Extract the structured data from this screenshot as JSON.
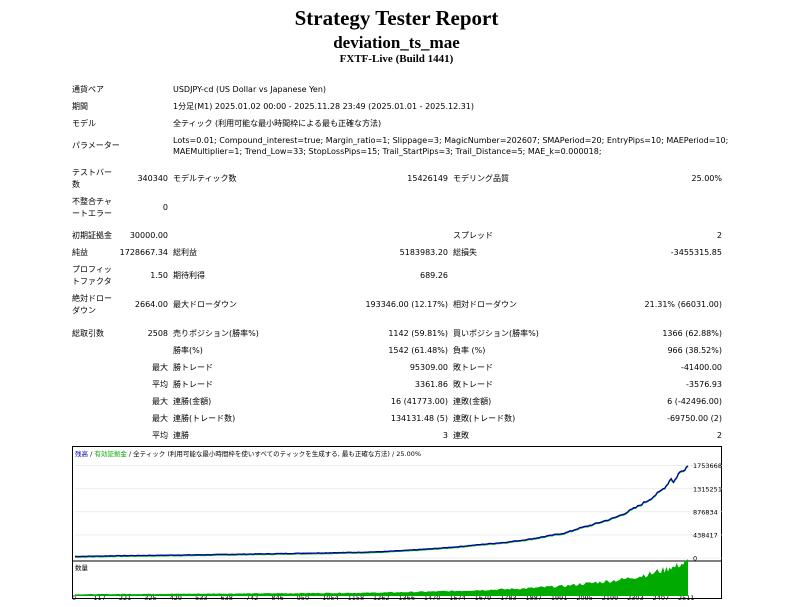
{
  "report": {
    "title": "Strategy Tester Report",
    "subtitle": "deviation_ts_mae",
    "server": "FXTF-Live (Build 1441)"
  },
  "settings": {
    "symbol_label": "通貨ペア",
    "symbol": "USDJPY-cd (US Dollar vs Japanese Yen)",
    "period_label": "期間",
    "period": "1分足(M1) 2025.01.02 00:00 - 2025.11.28 23:49 (2025.01.01 - 2025.12.31)",
    "model_label": "モデル",
    "model": "全ティック (利用可能な最小時間枠による最も正確な方法)",
    "params_label": "パラメーター",
    "params_line1": "Lots=0.01; Compound_interest=true; Margin_ratio=1; Slippage=3; MagicNumber=202607; SMAPeriod=20; EntryPips=10; MAEPeriod=10;",
    "params_line2": "MAEMultiplier=1; Trend_Low=33; StopLossPips=15; Trail_StartPips=3; Trail_Distance=5; MAE_k=0.000018;"
  },
  "stats": {
    "bars_label": [
      "テストバー",
      "数"
    ],
    "bars": "340340",
    "ticks_label": "モデルティック数",
    "ticks": "15426149",
    "quality_label": "モデリング品質",
    "quality": "25.00%",
    "mismatch_label": [
      "不整合チャ",
      "ートエラー"
    ],
    "mismatch": "0",
    "deposit_label": "初期証拠金",
    "deposit": "30000.00",
    "spread_label": "スプレッド",
    "spread": "2",
    "net_label": "純益",
    "net": "1728667.34",
    "gross_profit_label": "総利益",
    "gross_profit": "5183983.20",
    "gross_loss_label": "総損失",
    "gross_loss": "-3455315.85",
    "pf_label": [
      "プロフィッ",
      "トファクタ"
    ],
    "pf": "1.50",
    "expected_label": "期待利得",
    "expected": "689.26",
    "abs_dd_label": [
      "絶対ドロー",
      "ダウン"
    ],
    "abs_dd": "2664.00",
    "max_dd_label": "最大ドローダウン",
    "max_dd": "193346.00 (12.17%)",
    "rel_dd_label": "相対ドローダウン",
    "rel_dd": "21.31% (66031.00)",
    "total_trades_label": "総取引数",
    "total_trades": "2508",
    "short_label": "売りポジション(勝率%)",
    "short": "1142 (59.81%)",
    "long_label": "買いポジション(勝率%)",
    "long": "1366 (62.88%)",
    "win_rate_label": "勝率(%)",
    "win_rate": "1542 (61.48%)",
    "loss_rate_label": "負率 (%)",
    "loss_rate": "966 (38.52%)",
    "max_label": "最大",
    "avg_label": "平均",
    "largest_win_label": "勝トレード",
    "largest_win": "95309.00",
    "largest_loss_label": "敗トレード",
    "largest_loss": "-41400.00",
    "avg_win_label": "勝トレード",
    "avg_win": "3361.86",
    "avg_loss_label": "敗トレード",
    "avg_loss": "-3576.93",
    "max_consec_wins_label": "連勝(金額)",
    "max_consec_wins": "16 (41773.00)",
    "max_consec_losses_label": "連敗(金額)",
    "max_consec_losses": "6 (-42496.00)",
    "max_consec_profit_label": "連勝(トレード数)",
    "max_consec_profit": "134131.48 (5)",
    "max_consec_loss_label": "連敗(トレード数)",
    "max_consec_loss": "-69750.00 (2)",
    "avg_consec_wins_label": "連勝",
    "avg_consec_wins": "3",
    "avg_consec_losses_label": "連敗",
    "avg_consec_losses": "2"
  },
  "chart_data": {
    "type": "line",
    "legend": {
      "balance": "残高",
      "sep": " / ",
      "equity": "有効証拠金",
      "model": " / 全ティック (利用可能な最小時間枠を使いすべてのティックを生成する, 最も正確な方法) / 25.00%"
    },
    "volume_label": "数量",
    "yticks": [
      "1753668",
      "1315251",
      "876834",
      "438417",
      "0"
    ],
    "xticks": [
      "0",
      "117",
      "221",
      "325",
      "429",
      "533",
      "638",
      "742",
      "846",
      "950",
      "1054",
      "1158",
      "1262",
      "1366",
      "1470",
      "1574",
      "1679",
      "1783",
      "1887",
      "1991",
      "2095",
      "2199",
      "2303",
      "2407",
      "2511"
    ],
    "ylim": [
      0,
      1900000
    ],
    "xlim": [
      0,
      2560
    ],
    "balance_points": [
      [
        0,
        30000
      ],
      [
        200,
        45000
      ],
      [
        500,
        60000
      ],
      [
        800,
        80000
      ],
      [
        1000,
        95000
      ],
      [
        1200,
        110000
      ],
      [
        1300,
        125000
      ],
      [
        1400,
        150000
      ],
      [
        1500,
        180000
      ],
      [
        1600,
        215000
      ],
      [
        1700,
        260000
      ],
      [
        1800,
        300000
      ],
      [
        1900,
        360000
      ],
      [
        2000,
        440000
      ],
      [
        2050,
        480000
      ],
      [
        2100,
        560000
      ],
      [
        2150,
        620000
      ],
      [
        2200,
        690000
      ],
      [
        2250,
        760000
      ],
      [
        2300,
        860000
      ],
      [
        2350,
        980000
      ],
      [
        2400,
        1120000
      ],
      [
        2440,
        1250000
      ],
      [
        2470,
        1380000
      ],
      [
        2490,
        1520000
      ],
      [
        2500,
        1440000
      ],
      [
        2520,
        1600000
      ],
      [
        2540,
        1680000
      ],
      [
        2560,
        1753668
      ]
    ],
    "colors": {
      "balance": "#0000aa",
      "equity": "#00aa00",
      "volume": "#00aa00"
    }
  }
}
